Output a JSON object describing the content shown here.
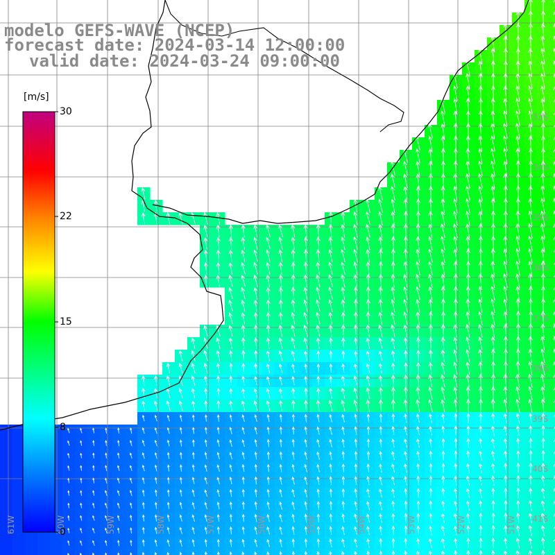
{
  "title": {
    "line1": "modelo GEFS-WAVE (NCEP)",
    "line2": "forecast date: 2024-03-14 12:00:00",
    "line3": "valid date: 2024-03-24 09:00:00"
  },
  "colorbar": {
    "unit": "[m/s]",
    "min": 0,
    "max": 30,
    "ticks": [
      "30",
      "22",
      "15",
      "8",
      "0"
    ],
    "colors": [
      "#0000ff",
      "#0080ff",
      "#00ffff",
      "#00ff00",
      "#ffff00",
      "#ff8000",
      "#ff0000",
      "#c00080"
    ]
  },
  "map": {
    "variable": "wind speed",
    "arrow_direction": "predominantly toward north",
    "lon_labels": [
      "61W",
      "60W",
      "59W",
      "58W",
      "57W",
      "56W",
      "55W",
      "54W",
      "53W",
      "52W",
      "51W"
    ],
    "lat_labels": [
      "33S",
      "34S",
      "35S",
      "36S",
      "37S",
      "38S",
      "39S",
      "40S",
      "41S"
    ],
    "arrow_color": "#ffffff",
    "coast_color": "#000000",
    "grid_color": "#808080"
  }
}
